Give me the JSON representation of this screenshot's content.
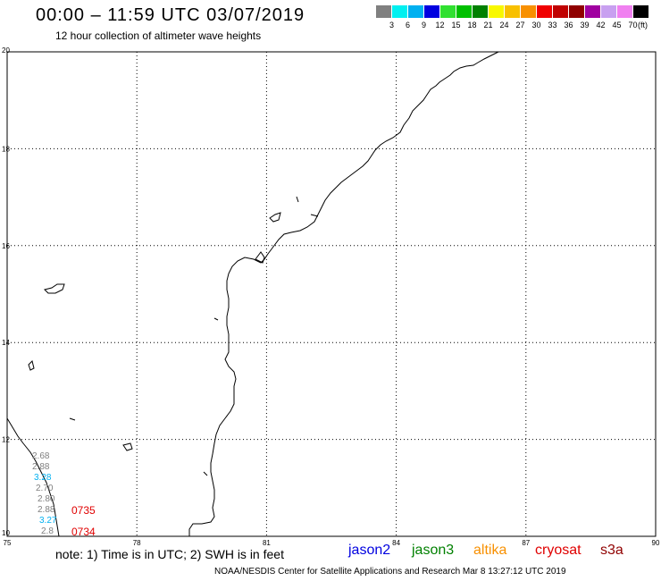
{
  "header": {
    "title": "00:00 – 11:59 UTC 03/07/2019",
    "subtitle": "12 hour collection of altimeter wave heights"
  },
  "legend": {
    "colors": [
      "#808080",
      "#00f0f0",
      "#00b0f0",
      "#0000e0",
      "#30e030",
      "#00c000",
      "#008000",
      "#f8f800",
      "#f8c000",
      "#f89000",
      "#f00000",
      "#c00000",
      "#900000",
      "#a000a0",
      "#c8a0f0",
      "#f080f0",
      "#000000"
    ],
    "labels": [
      "3",
      "6",
      "9",
      "12",
      "15",
      "18",
      "21",
      "24",
      "27",
      "30",
      "33",
      "36",
      "39",
      "42",
      "45",
      "70"
    ],
    "unit": "(ft)"
  },
  "map": {
    "lon_ticks": [
      "75",
      "78",
      "81",
      "84",
      "87",
      "90"
    ],
    "lat_ticks": [
      "20",
      "18",
      "16",
      "14",
      "12",
      "10"
    ],
    "observations": [
      {
        "text": "2.68",
        "color": "#808080"
      },
      {
        "text": "2.88",
        "color": "#808080"
      },
      {
        "text": "3.28",
        "color": "#00b0f0"
      },
      {
        "text": "2.70",
        "color": "#808080"
      },
      {
        "text": "2.80",
        "color": "#808080"
      },
      {
        "text": "2.88",
        "color": "#808080"
      },
      {
        "text": "3.27",
        "color": "#00b0f0"
      },
      {
        "text": "2.8",
        "color": "#808080"
      }
    ],
    "pass_labels": [
      "0735",
      "0734"
    ]
  },
  "footer": {
    "note": "note: 1) Time is in UTC; 2) SWH is in feet",
    "satellites": [
      {
        "name": "jason2",
        "color": "#0000e0"
      },
      {
        "name": "jason3",
        "color": "#008000"
      },
      {
        "name": "altika",
        "color": "#f89000"
      },
      {
        "name": "cryosat",
        "color": "#e00000"
      },
      {
        "name": "s3a",
        "color": "#900000"
      }
    ],
    "credit": "NOAA/NESDIS Center for Satellite Applications and Research    Mar  8 13:27:12 UTC 2019"
  }
}
